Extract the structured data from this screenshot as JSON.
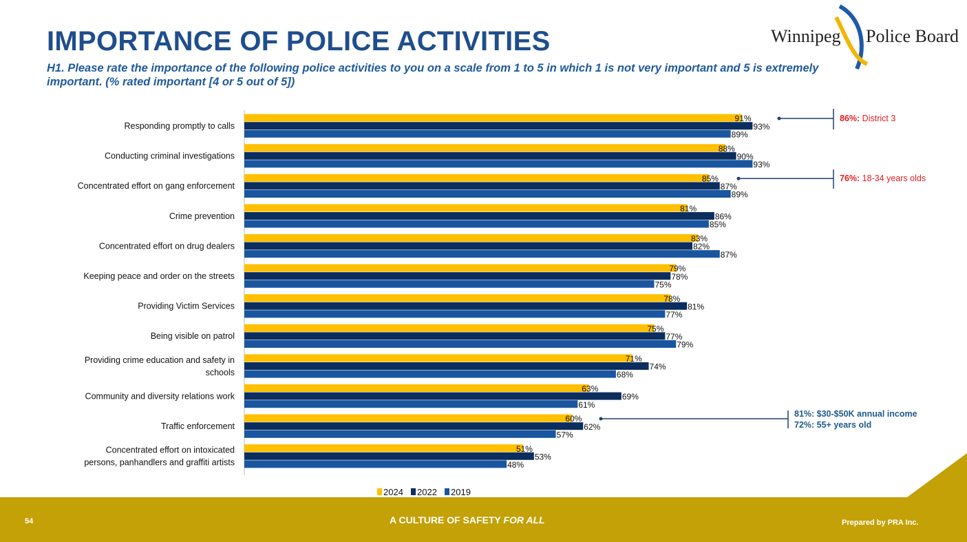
{
  "header": {
    "title": "IMPORTANCE OF POLICE ACTIVITIES",
    "subtitle": "H1. Please rate the importance of the following police activities to you on a scale from 1 to 5 in which 1 is not very important and 5 is extremely important. (% rated important [4 or 5 out of 5])",
    "logo_text_left": "Winnipeg",
    "logo_text_right": "Police Board"
  },
  "chart_data": {
    "type": "bar",
    "orientation": "horizontal",
    "xlim": [
      0,
      100
    ],
    "grid": false,
    "legend": "bottom",
    "categories": [
      [
        "Responding promptly to calls"
      ],
      [
        "Conducting criminal investigations"
      ],
      [
        "Concentrated effort on gang enforcement"
      ],
      [
        "Crime prevention"
      ],
      [
        "Concentrated effort on drug dealers"
      ],
      [
        "Keeping peace and order on the streets"
      ],
      [
        "Providing Victim Services"
      ],
      [
        "Being visible on patrol"
      ],
      [
        "Providing crime education and safety in",
        "schools"
      ],
      [
        "Community and diversity relations work"
      ],
      [
        "Traffic enforcement"
      ],
      [
        "Concentrated effort on intoxicated",
        "persons, panhandlers and graffiti artists"
      ]
    ],
    "series": [
      {
        "name": "2024",
        "color": "#FFC000",
        "values": [
          91,
          88,
          85,
          81,
          83,
          79,
          78,
          75,
          71,
          63,
          60,
          51
        ]
      },
      {
        "name": "2022",
        "color": "#0B2E5E",
        "values": [
          93,
          90,
          87,
          86,
          82,
          78,
          81,
          77,
          74,
          69,
          62,
          53
        ]
      },
      {
        "name": "2019",
        "color": "#1A55A0",
        "values": [
          89,
          93,
          89,
          85,
          87,
          75,
          77,
          79,
          68,
          61,
          57,
          48
        ]
      }
    ],
    "annotations": [
      {
        "category_index": 0,
        "color": "#E31B23",
        "lines": [
          {
            "bold": "86%:",
            "text": " District 3"
          }
        ]
      },
      {
        "category_index": 2,
        "color": "#E31B23",
        "lines": [
          {
            "bold": "76%:",
            "text": " 18-34 years olds"
          }
        ]
      },
      {
        "category_index": 10,
        "color": "#1F5A8C",
        "lines": [
          {
            "bold": "81%: $30-$50K annual income",
            "text": ""
          },
          {
            "bold": "72%: 55+ years old",
            "text": ""
          }
        ]
      }
    ]
  },
  "footer": {
    "page_number": "54",
    "tagline": "A CULTURE OF SAFETY ",
    "tagline_italic": "FOR ALL",
    "credit": "Prepared by PRA Inc.",
    "color": "#C3A107"
  }
}
